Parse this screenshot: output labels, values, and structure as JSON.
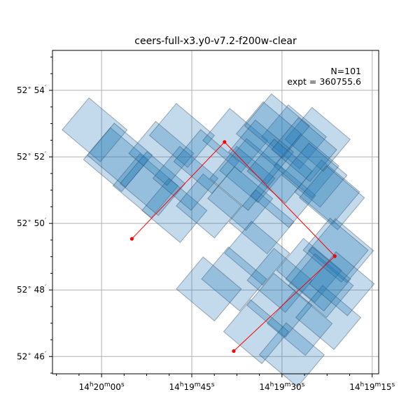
{
  "chart_data": {
    "type": "scatter",
    "title": "ceers-full-x3.y0-v7.2-f200w-clear",
    "annotation": {
      "n_text": "N=101",
      "expt_text": "expt = 360755.6"
    },
    "x_axis": {
      "quantity": "right ascension",
      "range_deg": [
        215.034,
        214.808
      ],
      "ticks": [
        {
          "deg": 215.0,
          "h": "14",
          "m": "20",
          "s": "00"
        },
        {
          "deg": 214.9375,
          "h": "14",
          "m": "19",
          "s": "45"
        },
        {
          "deg": 214.875,
          "h": "14",
          "m": "19",
          "s": "30"
        },
        {
          "deg": 214.8125,
          "h": "14",
          "m": "19",
          "s": "15"
        }
      ],
      "minor_step_deg": 0.015625
    },
    "y_axis": {
      "quantity": "declination",
      "range_deg": [
        52.758,
        52.92
      ],
      "ticks": [
        {
          "deg": 52.9,
          "d": "52",
          "m": "54"
        },
        {
          "deg": 52.866667,
          "d": "52",
          "m": "52"
        },
        {
          "deg": 52.833333,
          "d": "52",
          "m": "50"
        },
        {
          "deg": 52.8,
          "d": "52",
          "m": "48"
        },
        {
          "deg": 52.766667,
          "d": "52",
          "m": "46"
        }
      ],
      "minor_step_deg": 0.0083333
    },
    "grid": true,
    "footprint_color": "#1f77b4",
    "footprint_edge_color": "#2c3e50",
    "footprint_alpha": 0.27,
    "footprint_size_deg": [
      0.0345,
      0.0209
    ],
    "footprint_angle_deg": 40,
    "footprints": [
      [
        214.99,
        52.8653
      ],
      [
        215.0048,
        52.8802
      ],
      [
        214.9695,
        52.8522
      ],
      [
        214.9873,
        52.8675
      ],
      [
        214.9495,
        52.8398
      ],
      [
        214.9646,
        52.8533
      ],
      [
        214.9586,
        52.8684
      ],
      [
        214.9419,
        52.8559
      ],
      [
        214.9257,
        52.8421
      ],
      [
        214.9443,
        52.8774
      ],
      [
        214.9274,
        52.8643
      ],
      [
        214.9073,
        52.8749
      ],
      [
        214.8956,
        52.8598
      ],
      [
        214.9039,
        52.8458
      ],
      [
        214.8892,
        52.8341
      ],
      [
        214.8742,
        52.8473
      ],
      [
        214.8667,
        52.8767
      ],
      [
        214.8581,
        52.8621
      ],
      [
        214.8437,
        52.8491
      ],
      [
        214.8503,
        52.8754
      ],
      [
        214.8841,
        52.8782
      ],
      [
        214.8784,
        52.8822
      ],
      [
        214.8922,
        52.8184
      ],
      [
        214.9082,
        52.8055
      ],
      [
        214.9257,
        52.8005
      ],
      [
        214.8766,
        52.8048
      ],
      [
        214.8562,
        52.8098
      ],
      [
        214.8341,
        52.8197
      ],
      [
        214.8481,
        52.8022
      ],
      [
        214.8627,
        52.7832
      ],
      [
        214.8767,
        52.7923
      ],
      [
        214.8929,
        52.7791
      ],
      [
        214.8429,
        52.7862
      ],
      [
        214.8682,
        52.7675
      ],
      [
        214.9024,
        52.8559
      ],
      [
        214.8895,
        52.8691
      ],
      [
        214.8765,
        52.8595
      ],
      [
        214.8596,
        52.8703
      ],
      [
        214.8525,
        52.8575
      ],
      [
        214.8404,
        52.8462
      ],
      [
        214.8378,
        52.8199
      ],
      [
        214.8499,
        52.8055
      ],
      [
        214.8336,
        52.8031
      ]
    ],
    "series": [
      {
        "type": "line",
        "color": "#ff0000",
        "points": [
          [
            214.979,
            52.8256
          ],
          [
            214.9148,
            52.8741
          ],
          [
            214.8384,
            52.8169
          ],
          [
            214.9084,
            52.7694
          ]
        ]
      }
    ]
  }
}
